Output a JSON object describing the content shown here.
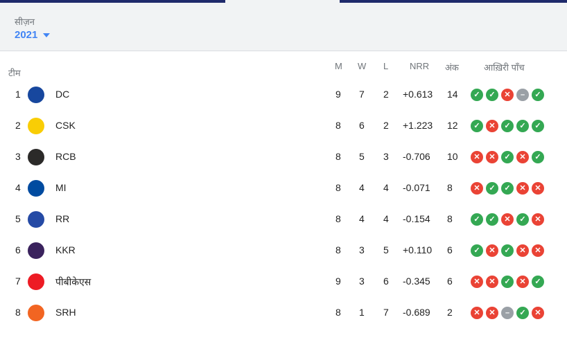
{
  "season": {
    "label": "सीज़न",
    "value": "2021"
  },
  "columns": {
    "team": "टीम",
    "m": "M",
    "w": "W",
    "l": "L",
    "nrr": "NRR",
    "pts": "अंक",
    "last5": "आख़िरी पाँच"
  },
  "colors": {
    "win": "#34a853",
    "loss": "#ea4335",
    "no_result": "#9aa0a6",
    "accent": "#4285f4",
    "topbar": "#1f2a6b"
  },
  "rows": [
    {
      "pos": "1",
      "team": "DC",
      "m": "9",
      "w": "7",
      "l": "2",
      "nrr": "+0.613",
      "pts": "14",
      "last5": [
        "W",
        "W",
        "L",
        "N",
        "W"
      ],
      "logo_color": "#17479e"
    },
    {
      "pos": "2",
      "team": "CSK",
      "m": "8",
      "w": "6",
      "l": "2",
      "nrr": "+1.223",
      "pts": "12",
      "last5": [
        "W",
        "L",
        "W",
        "W",
        "W"
      ],
      "logo_color": "#f9cd05"
    },
    {
      "pos": "3",
      "team": "RCB",
      "m": "8",
      "w": "5",
      "l": "3",
      "nrr": "-0.706",
      "pts": "10",
      "last5": [
        "L",
        "L",
        "W",
        "L",
        "W"
      ],
      "logo_color": "#2b2a29"
    },
    {
      "pos": "4",
      "team": "MI",
      "m": "8",
      "w": "4",
      "l": "4",
      "nrr": "-0.071",
      "pts": "8",
      "last5": [
        "L",
        "W",
        "W",
        "L",
        "L"
      ],
      "logo_color": "#004ba0"
    },
    {
      "pos": "5",
      "team": "RR",
      "m": "8",
      "w": "4",
      "l": "4",
      "nrr": "-0.154",
      "pts": "8",
      "last5": [
        "W",
        "W",
        "L",
        "W",
        "L"
      ],
      "logo_color": "#254aa5"
    },
    {
      "pos": "6",
      "team": "KKR",
      "m": "8",
      "w": "3",
      "l": "5",
      "nrr": "+0.110",
      "pts": "6",
      "last5": [
        "W",
        "L",
        "W",
        "L",
        "L"
      ],
      "logo_color": "#3a225d"
    },
    {
      "pos": "7",
      "team": "पीबीकेएस",
      "m": "9",
      "w": "3",
      "l": "6",
      "nrr": "-0.345",
      "pts": "6",
      "last5": [
        "L",
        "L",
        "W",
        "L",
        "W"
      ],
      "logo_color": "#ed1b24"
    },
    {
      "pos": "8",
      "team": "SRH",
      "m": "8",
      "w": "1",
      "l": "7",
      "nrr": "-0.689",
      "pts": "2",
      "last5": [
        "L",
        "L",
        "N",
        "W",
        "L"
      ],
      "logo_color": "#f26522"
    }
  ]
}
